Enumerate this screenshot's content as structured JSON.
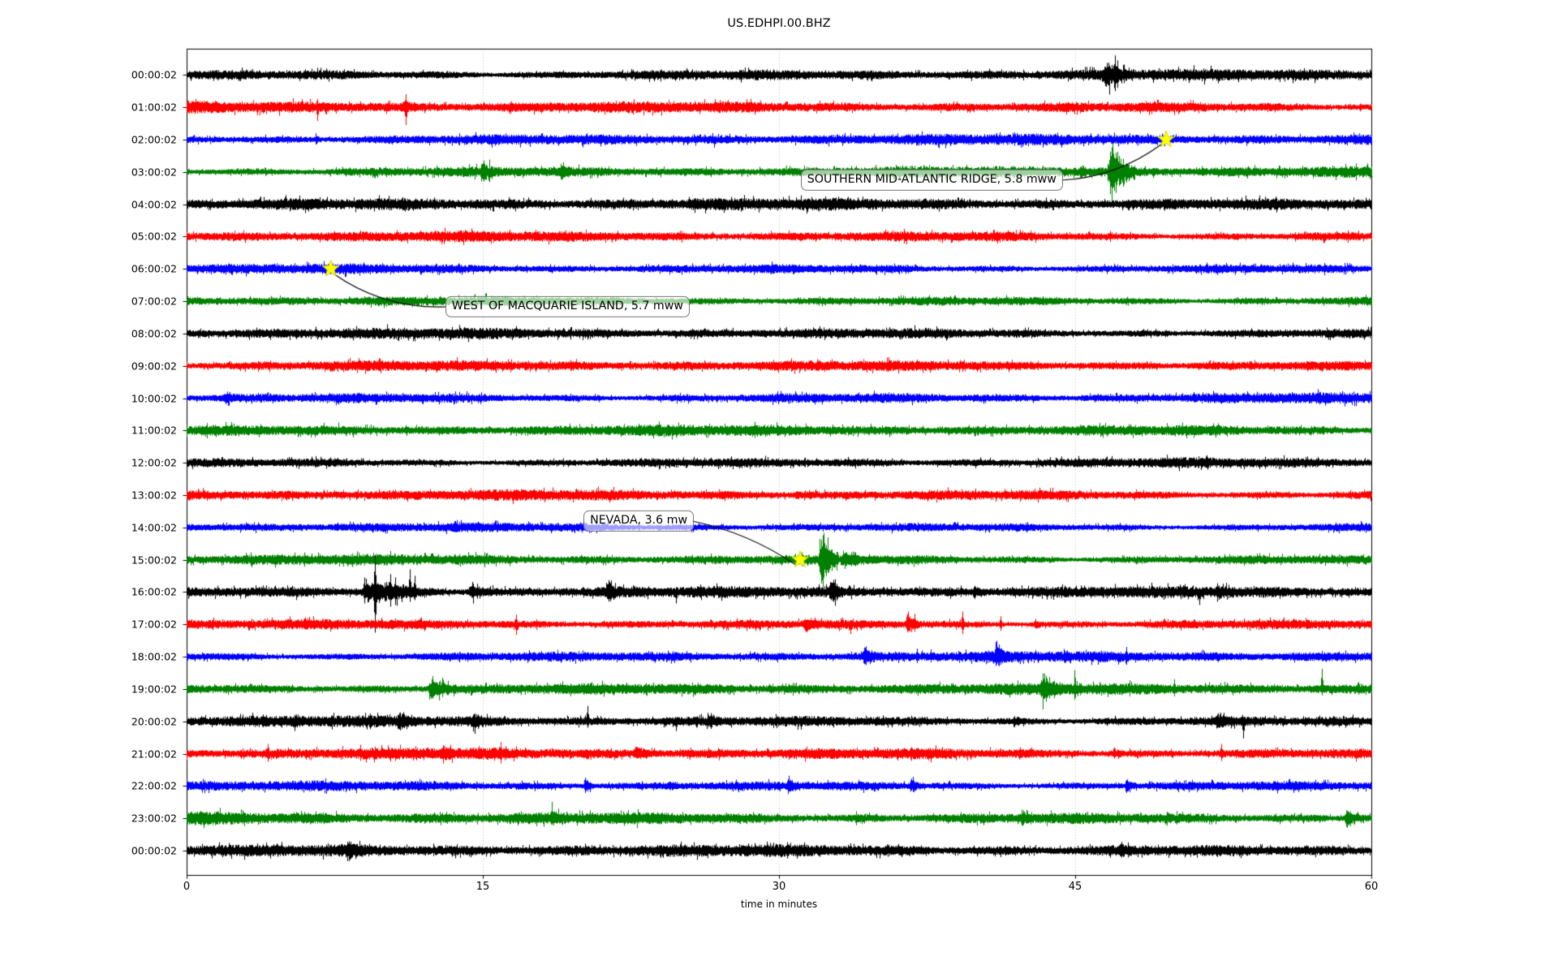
{
  "chart_data": {
    "type": "line",
    "subtype": "seismogram-dayplot",
    "title": "US.EDHPI.00.BHZ",
    "xlabel": "time in minutes",
    "ylabel": "",
    "xlim": [
      0,
      60
    ],
    "xticks": [
      "0",
      "15",
      "30",
      "45",
      "60"
    ],
    "grid": "vertical dotted gridlines at 15, 30, 45 minutes",
    "legend": "none",
    "trace_color_cycle": [
      "#000000",
      "#ff0000",
      "#0000ff",
      "#008000"
    ],
    "marker_color": "#ffff00",
    "rows": [
      {
        "label": "00:00:02",
        "color": "#000000",
        "noise": 4.6,
        "events": [
          {
            "kind": "burst",
            "m": 46.3,
            "dur": 1.7,
            "amp": 9
          },
          {
            "kind": "spike",
            "m": 46.7,
            "up": 15,
            "down": 13
          },
          {
            "kind": "spike",
            "m": 47.0,
            "up": 24,
            "down": 20
          },
          {
            "kind": "spike",
            "m": 47.15,
            "up": 18,
            "down": 16
          }
        ]
      },
      {
        "label": "01:00:02",
        "color": "#ff0000",
        "noise": 4.6,
        "events": [
          {
            "kind": "spike",
            "m": 6.6,
            "up": 10,
            "down": 17
          },
          {
            "kind": "burst",
            "m": 10.9,
            "dur": 0.5,
            "amp": 4
          },
          {
            "kind": "spike",
            "m": 11.1,
            "up": 16,
            "down": 22
          }
        ]
      },
      {
        "label": "02:00:02",
        "color": "#0000ff",
        "noise": 4.4,
        "events": [
          {
            "kind": "burst",
            "m": 6.5,
            "dur": 0.3,
            "amp": 4
          },
          {
            "kind": "spike",
            "m": 26.7,
            "up": 4,
            "down": 10
          }
        ]
      },
      {
        "label": "03:00:02",
        "color": "#008000",
        "noise": 4.6,
        "events": [
          {
            "kind": "burst",
            "m": 14.9,
            "dur": 0.6,
            "amp": 10
          },
          {
            "kind": "spike",
            "m": 15.05,
            "up": 14,
            "down": 12
          },
          {
            "kind": "burst",
            "m": 18.9,
            "dur": 0.5,
            "amp": 8
          },
          {
            "kind": "burst",
            "m": 45.2,
            "dur": 0.4,
            "amp": 7
          },
          {
            "kind": "burst",
            "m": 46.6,
            "dur": 1.4,
            "amp": 26
          },
          {
            "kind": "spike",
            "m": 46.85,
            "up": 30,
            "down": 36
          },
          {
            "kind": "spike",
            "m": 47.05,
            "up": 22,
            "down": 26
          }
        ]
      },
      {
        "label": "04:00:02",
        "color": "#000000",
        "noise": 4.8,
        "events": [
          {
            "kind": "burst",
            "m": 25.5,
            "dur": 1.5,
            "amp": 2.5
          }
        ]
      },
      {
        "label": "05:00:02",
        "color": "#ff0000",
        "noise": 4.4,
        "events": []
      },
      {
        "label": "06:00:02",
        "color": "#0000ff",
        "noise": 4.2,
        "events": []
      },
      {
        "label": "07:00:02",
        "color": "#008000",
        "noise": 4.2,
        "events": []
      },
      {
        "label": "08:00:02",
        "color": "#000000",
        "noise": 4.4,
        "events": []
      },
      {
        "label": "09:00:02",
        "color": "#ff0000",
        "noise": 4.2,
        "events": []
      },
      {
        "label": "10:00:02",
        "color": "#0000ff",
        "noise": 4.6,
        "events": [
          {
            "kind": "burst",
            "m": 1.8,
            "dur": 1.0,
            "amp": 2.5
          }
        ]
      },
      {
        "label": "11:00:02",
        "color": "#008000",
        "noise": 4.4,
        "events": []
      },
      {
        "label": "12:00:02",
        "color": "#000000",
        "noise": 4.2,
        "events": []
      },
      {
        "label": "13:00:02",
        "color": "#ff0000",
        "noise": 4.4,
        "events": [
          {
            "kind": "burst",
            "m": 30.8,
            "dur": 0.5,
            "amp": 2.5
          }
        ]
      },
      {
        "label": "14:00:02",
        "color": "#0000ff",
        "noise": 4.0,
        "events": []
      },
      {
        "label": "15:00:02",
        "color": "#008000",
        "noise": 4.4,
        "events": [
          {
            "kind": "spike",
            "m": 31.15,
            "up": 9,
            "down": 8
          },
          {
            "kind": "burst",
            "m": 32.0,
            "dur": 1.0,
            "amp": 30
          },
          {
            "kind": "spike",
            "m": 32.2,
            "up": 30,
            "down": 40
          },
          {
            "kind": "burst",
            "m": 33.1,
            "dur": 1.8,
            "amp": 5
          }
        ]
      },
      {
        "label": "16:00:02",
        "color": "#000000",
        "noise": 4.6,
        "events": [
          {
            "kind": "burst",
            "m": 8.8,
            "dur": 4.2,
            "amp": 9
          },
          {
            "kind": "spike",
            "m": 9.0,
            "up": 18,
            "down": 14
          },
          {
            "kind": "spike",
            "m": 9.55,
            "up": 46,
            "down": 50
          },
          {
            "kind": "spike",
            "m": 10.3,
            "up": 22,
            "down": 18
          },
          {
            "kind": "spike",
            "m": 10.55,
            "up": 18,
            "down": 16
          },
          {
            "kind": "spike",
            "m": 11.3,
            "up": 28,
            "down": 12
          },
          {
            "kind": "spike",
            "m": 11.55,
            "up": 20,
            "down": 10
          },
          {
            "kind": "burst",
            "m": 14.2,
            "dur": 1.6,
            "amp": 5
          },
          {
            "kind": "burst",
            "m": 21.2,
            "dur": 0.8,
            "amp": 7
          },
          {
            "kind": "spike",
            "m": 24.8,
            "up": 5,
            "down": 14
          },
          {
            "kind": "burst",
            "m": 32.5,
            "dur": 0.7,
            "amp": 10
          },
          {
            "kind": "spike",
            "m": 32.75,
            "up": 15,
            "down": 12
          },
          {
            "kind": "burst",
            "m": 39.8,
            "dur": 0.6,
            "amp": 4
          },
          {
            "kind": "spike",
            "m": 51.3,
            "up": 4,
            "down": 16
          },
          {
            "kind": "burst",
            "m": 52.1,
            "dur": 1.0,
            "amp": 4
          }
        ]
      },
      {
        "label": "17:00:02",
        "color": "#ff0000",
        "noise": 4.4,
        "events": [
          {
            "kind": "spike",
            "m": 16.7,
            "up": 12,
            "down": 13
          },
          {
            "kind": "burst",
            "m": 31.2,
            "dur": 0.9,
            "amp": 5
          },
          {
            "kind": "spike",
            "m": 33.6,
            "up": 5,
            "down": 12
          },
          {
            "kind": "burst",
            "m": 36.4,
            "dur": 0.8,
            "amp": 8
          },
          {
            "kind": "spike",
            "m": 36.85,
            "up": 13,
            "down": 9
          },
          {
            "kind": "spike",
            "m": 39.3,
            "up": 16,
            "down": 12
          },
          {
            "kind": "spike",
            "m": 41.2,
            "up": 10,
            "down": 8
          },
          {
            "kind": "burst",
            "m": 42.9,
            "dur": 0.5,
            "amp": 5
          }
        ]
      },
      {
        "label": "18:00:02",
        "color": "#0000ff",
        "noise": 4.4,
        "events": [
          {
            "kind": "burst",
            "m": 34.2,
            "dur": 0.9,
            "amp": 8
          },
          {
            "kind": "spike",
            "m": 37.0,
            "up": 10,
            "down": 8
          },
          {
            "kind": "spike",
            "m": 37.7,
            "up": 9,
            "down": 7
          },
          {
            "kind": "burst",
            "m": 40.9,
            "dur": 0.7,
            "amp": 9
          },
          {
            "kind": "spike",
            "m": 41.15,
            "up": 15,
            "down": 9
          },
          {
            "kind": "burst",
            "m": 44.4,
            "dur": 0.4,
            "amp": 5
          },
          {
            "kind": "spike",
            "m": 47.6,
            "up": 12,
            "down": 10
          }
        ]
      },
      {
        "label": "19:00:02",
        "color": "#008000",
        "noise": 4.6,
        "events": [
          {
            "kind": "burst",
            "m": 12.2,
            "dur": 1.5,
            "amp": 10
          },
          {
            "kind": "spike",
            "m": 12.45,
            "up": 16,
            "down": 12
          },
          {
            "kind": "spike",
            "m": 12.95,
            "up": 14,
            "down": 10
          },
          {
            "kind": "burst",
            "m": 43.2,
            "dur": 1.3,
            "amp": 9
          },
          {
            "kind": "spike",
            "m": 43.55,
            "up": 13,
            "down": 11
          },
          {
            "kind": "burst",
            "m": 44.9,
            "dur": 0.5,
            "amp": 6
          },
          {
            "kind": "spike",
            "m": 50.0,
            "up": 12,
            "down": 9
          },
          {
            "kind": "spike",
            "m": 57.5,
            "up": 25,
            "down": 8
          }
        ]
      },
      {
        "label": "20:00:02",
        "color": "#000000",
        "noise": 4.6,
        "events": [
          {
            "kind": "burst",
            "m": 5.4,
            "dur": 0.6,
            "amp": 3
          },
          {
            "kind": "burst",
            "m": 10.6,
            "dur": 1.3,
            "amp": 4
          },
          {
            "kind": "burst",
            "m": 14.3,
            "dur": 2.0,
            "amp": 3
          },
          {
            "kind": "spike",
            "m": 20.3,
            "up": 19,
            "down": 8
          },
          {
            "kind": "spike",
            "m": 24.8,
            "up": 4,
            "down": 12
          },
          {
            "kind": "burst",
            "m": 26.3,
            "dur": 0.8,
            "amp": 4
          },
          {
            "kind": "burst",
            "m": 41.8,
            "dur": 0.8,
            "amp": 3
          },
          {
            "kind": "burst",
            "m": 52.1,
            "dur": 0.9,
            "amp": 5
          },
          {
            "kind": "spike",
            "m": 53.5,
            "up": 5,
            "down": 21
          }
        ]
      },
      {
        "label": "21:00:02",
        "color": "#ff0000",
        "noise": 4.6,
        "events": [
          {
            "kind": "spike",
            "m": 4.1,
            "up": 12,
            "down": 10
          },
          {
            "kind": "spike",
            "m": 8.8,
            "up": 11,
            "down": 9
          },
          {
            "kind": "burst",
            "m": 12.9,
            "dur": 0.6,
            "amp": 5
          },
          {
            "kind": "spike",
            "m": 15.9,
            "up": 14,
            "down": 12
          },
          {
            "kind": "burst",
            "m": 22.6,
            "dur": 1.3,
            "amp": 5
          },
          {
            "kind": "burst",
            "m": 46.9,
            "dur": 0.5,
            "amp": 4
          },
          {
            "kind": "spike",
            "m": 52.4,
            "up": 12,
            "down": 9
          }
        ]
      },
      {
        "label": "22:00:02",
        "color": "#0000ff",
        "noise": 4.4,
        "events": [
          {
            "kind": "burst",
            "m": 20.1,
            "dur": 0.6,
            "amp": 7
          },
          {
            "kind": "burst",
            "m": 24.4,
            "dur": 0.4,
            "amp": 4
          },
          {
            "kind": "burst",
            "m": 30.4,
            "dur": 0.5,
            "amp": 6
          },
          {
            "kind": "burst",
            "m": 36.6,
            "dur": 0.7,
            "amp": 7
          },
          {
            "kind": "burst",
            "m": 47.5,
            "dur": 0.6,
            "amp": 6
          }
        ]
      },
      {
        "label": "23:00:02",
        "color": "#008000",
        "noise": 5.4,
        "events": [
          {
            "kind": "burst",
            "m": 18.4,
            "dur": 0.6,
            "amp": 5
          },
          {
            "kind": "burst",
            "m": 33.8,
            "dur": 0.5,
            "amp": 3
          },
          {
            "kind": "burst",
            "m": 42.2,
            "dur": 0.7,
            "amp": 6
          },
          {
            "kind": "burst",
            "m": 58.6,
            "dur": 1.2,
            "amp": 7
          }
        ]
      },
      {
        "label": "00:00:02",
        "color": "#000000",
        "noise": 4.8,
        "events": [
          {
            "kind": "burst",
            "m": 8.0,
            "dur": 1.3,
            "amp": 4
          },
          {
            "kind": "spike",
            "m": 28.0,
            "up": 8,
            "down": 6
          },
          {
            "kind": "spike",
            "m": 36.8,
            "up": 6,
            "down": 5
          },
          {
            "kind": "burst",
            "m": 41.4,
            "dur": 0.5,
            "amp": 3
          },
          {
            "kind": "burst",
            "m": 47.2,
            "dur": 0.8,
            "amp": 3
          }
        ]
      }
    ],
    "annotations": [
      {
        "text": "SOUTHERN MID-ATLANTIC RIDGE, 5.8 mww",
        "star": {
          "row": 2,
          "minute": 49.6
        },
        "box": {
          "row": 3,
          "minute": 31.1,
          "dy": 10
        },
        "rad": -0.15,
        "connect_from": "box-right"
      },
      {
        "text": "WEST OF MACQUARIE ISLAND, 5.7 mww",
        "star": {
          "row": 6,
          "minute": 7.3
        },
        "box": {
          "row": 7,
          "minute": 13.1,
          "dy": 7
        },
        "rad": -0.17,
        "connect_from": "star"
      },
      {
        "text": "NEVADA, 3.6 mw",
        "star": {
          "row": 15,
          "minute": 31.07
        },
        "box": {
          "row": 14,
          "minute": 20.1,
          "dy": -8
        },
        "rad": 0.1,
        "connect_from": "box-right"
      }
    ]
  }
}
